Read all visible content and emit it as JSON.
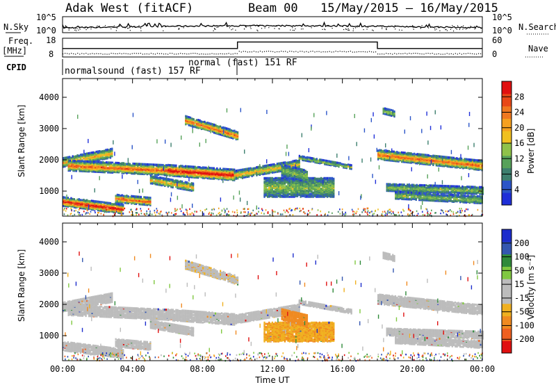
{
  "header": {
    "station": "Adak West (fitACF)",
    "beam": "Beam 00",
    "date_range": "15/May/2015 – 16/May/2015"
  },
  "colors": {
    "power_scale": [
      "#1f2fd8",
      "#2b55c8",
      "#3d7f6e",
      "#57a25a",
      "#8fc24a",
      "#f0c020",
      "#f5a020",
      "#f07820",
      "#e84818",
      "#e01010"
    ],
    "velocity_scale": [
      "#1c2ccc",
      "#3457b0",
      "#2f8a3a",
      "#80c840",
      "#bcbcbc",
      "#bcbcbc",
      "#f0b020",
      "#f08a20",
      "#ef6020",
      "#e01010"
    ]
  },
  "chart_data": [
    {
      "type": "line",
      "name": "noise-panel",
      "left_label": "N.Sky",
      "right_label": "N.Search",
      "left_ticks": [
        "10^5",
        "10^0"
      ],
      "right_ticks": [
        "10^5",
        "10^0"
      ]
    },
    {
      "type": "line",
      "name": "frequency-panel",
      "left_label_1": "Freq.",
      "left_label_2": "[MHz]",
      "right_label": "Nave",
      "left_ticks": [
        "18",
        "8"
      ],
      "right_ticks": [
        "60",
        "0"
      ],
      "freq_steps": [
        {
          "x0": 0,
          "x1": 10,
          "level": 0.45
        },
        {
          "x0": 10,
          "x1": 18,
          "level": 0.8
        },
        {
          "x0": 18,
          "x1": 24,
          "level": 0.45
        }
      ]
    },
    {
      "type": "table",
      "name": "cpid-panel",
      "label": "CPID",
      "entries": [
        "normalsound (fast) 157 RF",
        "normal (fast) 151 RF"
      ]
    },
    {
      "type": "heatmap",
      "name": "power-panel",
      "ylabel": "Slant Range [km]",
      "ylim": [
        200,
        4600
      ],
      "yticks": [
        1000,
        2000,
        3000,
        4000
      ],
      "xlim": [
        0,
        24
      ],
      "colorbar_label": "Power [dB]",
      "colorbar_ticks": [
        "4",
        "8",
        "12",
        "16",
        "20",
        "24",
        "28"
      ]
    },
    {
      "type": "heatmap",
      "name": "velocity-panel",
      "ylabel": "Slant Range [km]",
      "ylim": [
        200,
        4600
      ],
      "yticks": [
        1000,
        2000,
        3000,
        4000
      ],
      "xlim": [
        0,
        24
      ],
      "xticks": [
        "00:00",
        "04:00",
        "08:00",
        "12:00",
        "16:00",
        "20:00",
        "00:00"
      ],
      "xlabel": "Time UT",
      "colorbar_label": "Velocity [m s⁻¹]",
      "colorbar_ticks": [
        "200",
        "100",
        "50",
        "15",
        "-15",
        "-50",
        "-100",
        "-200"
      ]
    }
  ]
}
